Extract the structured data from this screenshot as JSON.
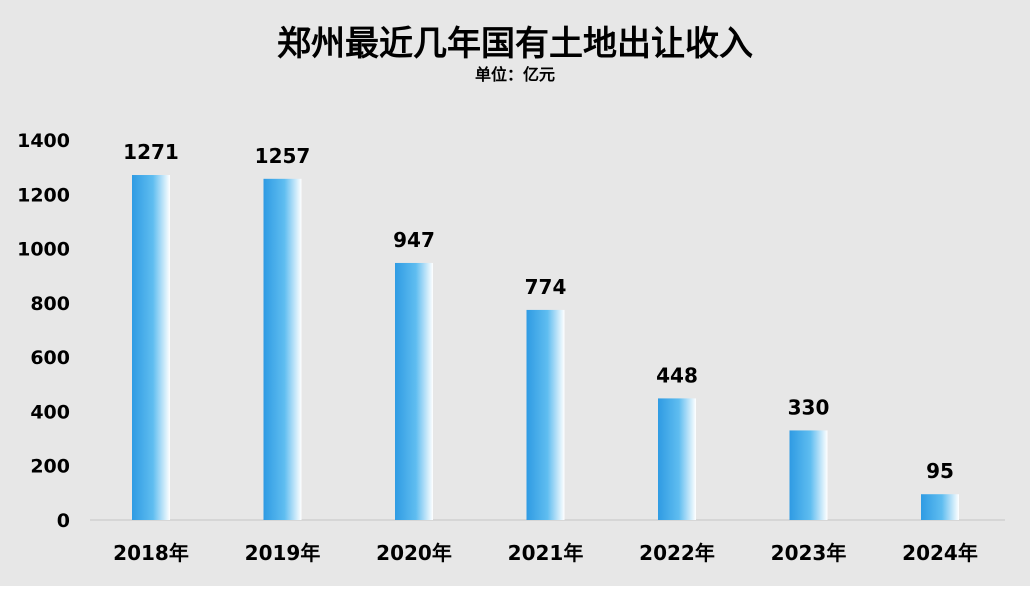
{
  "chart_data": {
    "type": "bar",
    "title": "郑州最近几年国有土地出让收入",
    "subtitle": "单位：亿元",
    "categories": [
      "2018年",
      "2019年",
      "2020年",
      "2021年",
      "2022年",
      "2023年",
      "2024年"
    ],
    "values": [
      1271,
      1257,
      947,
      774,
      448,
      330,
      95
    ],
    "ylim": [
      0,
      1400
    ],
    "yticks": [
      0,
      200,
      400,
      600,
      800,
      1000,
      1200,
      1400
    ],
    "grid": false,
    "legend": "none",
    "colors": {
      "background": "#e7e7e7",
      "bar_dark": "#2f9be3",
      "bar_mid": "#5fbdf0",
      "bar_light": "#ffffff",
      "axis": "#d0d0d0",
      "text": "#000000"
    }
  }
}
